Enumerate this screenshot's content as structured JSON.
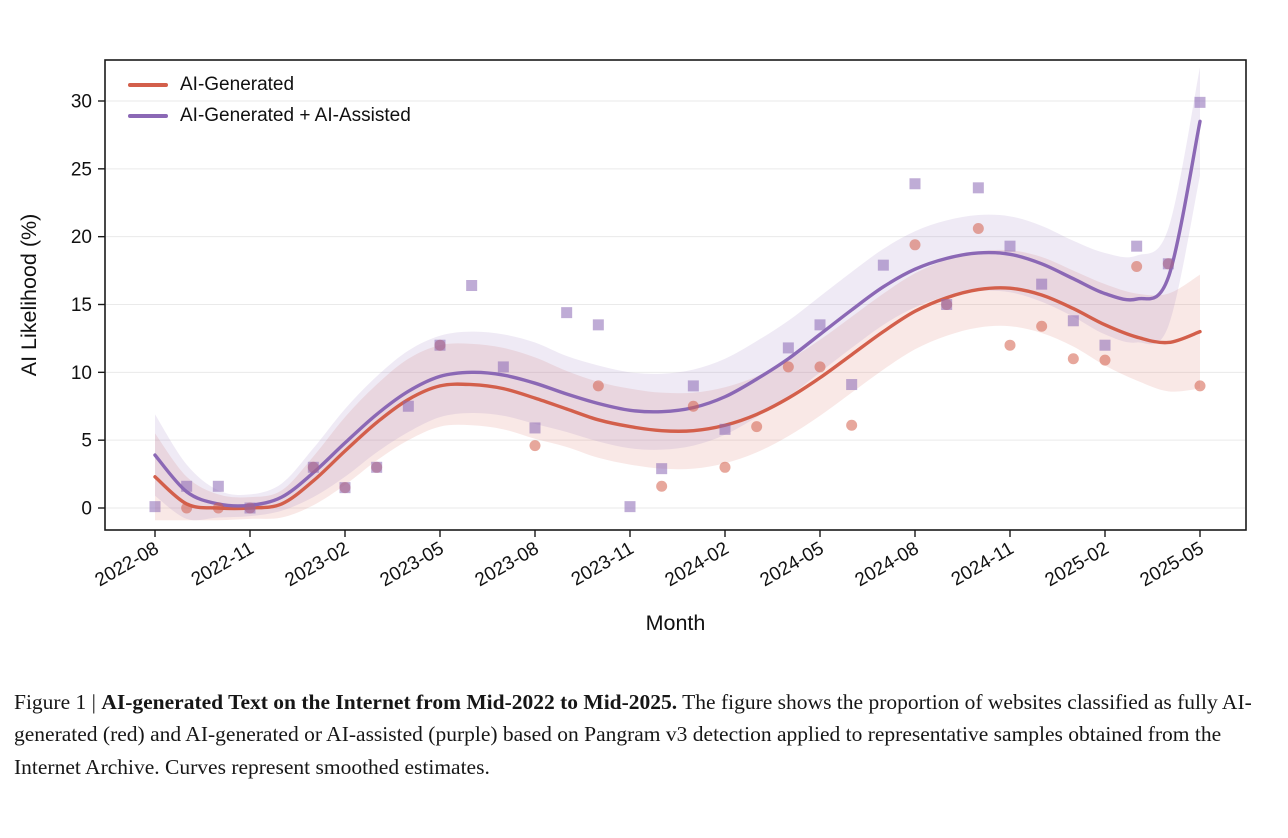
{
  "figure": {
    "caption_prefix": "Figure 1 | ",
    "caption_title": "AI-generated Text on the Internet from Mid-2022 to Mid-2025.",
    "caption_body": " The figure shows the proportion of websites classified as fully AI-generated (red) and AI-generated or AI-assisted (purple) based on Pangram v3 detection applied to representative samples obtained from the Internet Archive. Curves represent smoothed estimates."
  },
  "chart_data": {
    "type": "scatter",
    "subtype": "scatter points with smoothed trend lines and confidence bands",
    "title": "",
    "xlabel": "Month",
    "ylabel": "AI Likelihood (%)",
    "ylim": [
      -1.6,
      33
    ],
    "grid": "horizontal",
    "y_ticks": [
      0,
      5,
      10,
      15,
      20,
      25,
      30
    ],
    "x_tick_labels": [
      "2022-08",
      "2022-11",
      "2023-02",
      "2023-05",
      "2023-08",
      "2023-11",
      "2024-02",
      "2024-05",
      "2024-08",
      "2024-11",
      "2025-02",
      "2025-05"
    ],
    "x_months": [
      "2022-08",
      "2022-09",
      "2022-10",
      "2022-11",
      "2022-12",
      "2023-01",
      "2023-02",
      "2023-03",
      "2023-04",
      "2023-05",
      "2023-06",
      "2023-07",
      "2023-08",
      "2023-09",
      "2023-10",
      "2023-11",
      "2023-12",
      "2024-01",
      "2024-02",
      "2024-03",
      "2024-04",
      "2024-05",
      "2024-06",
      "2024-07",
      "2024-08",
      "2024-09",
      "2024-10",
      "2024-11",
      "2024-12",
      "2025-01",
      "2025-02",
      "2025-03",
      "2025-04",
      "2025-05"
    ],
    "legend": {
      "position": "top-left",
      "entries": [
        {
          "label": "AI-Generated",
          "color": "#d35f4b"
        },
        {
          "label": "AI-Generated + AI-Assisted",
          "color": "#8b68b5"
        }
      ]
    },
    "colors": {
      "grid": "#eaeaea",
      "axis": "#1a1a1a",
      "red_band_fill": "rgba(211,95,75,0.14)",
      "purple_band_fill": "rgba(139,104,181,0.14)"
    },
    "series": [
      {
        "name": "AI-Generated",
        "color": "#d35f4b",
        "marker": "circle",
        "smoothed": [
          2.3,
          0.3,
          0.0,
          0.0,
          0.3,
          2.0,
          4.2,
          6.3,
          8.0,
          9.0,
          9.1,
          8.8,
          8.1,
          7.3,
          6.5,
          6.0,
          5.7,
          5.7,
          6.1,
          6.9,
          8.1,
          9.6,
          11.3,
          13.0,
          14.5,
          15.5,
          16.1,
          16.2,
          15.7,
          14.7,
          13.5,
          12.6,
          12.2,
          13.0
        ],
        "band_width": [
          3.2,
          2.0,
          1.0,
          0.8,
          1.0,
          1.8,
          2.5,
          2.8,
          3.0,
          3.0,
          3.0,
          3.0,
          3.0,
          2.8,
          2.8,
          2.8,
          2.8,
          2.8,
          2.8,
          2.8,
          2.8,
          2.8,
          2.8,
          2.8,
          2.8,
          2.8,
          2.8,
          2.8,
          2.8,
          2.8,
          3.0,
          3.2,
          3.6,
          4.2
        ],
        "points": [
          [
            "2022-09",
            0.0
          ],
          [
            "2022-10",
            0.0
          ],
          [
            "2022-11",
            0.0
          ],
          [
            "2023-01",
            3.0
          ],
          [
            "2023-02",
            1.5
          ],
          [
            "2023-03",
            3.0
          ],
          [
            "2023-05",
            12.0
          ],
          [
            "2023-08",
            4.6
          ],
          [
            "2023-10",
            9.0
          ],
          [
            "2023-12",
            1.6
          ],
          [
            "2024-01",
            7.5
          ],
          [
            "2024-02",
            3.0
          ],
          [
            "2024-03",
            6.0
          ],
          [
            "2024-04",
            10.4
          ],
          [
            "2024-05",
            10.4
          ],
          [
            "2024-06",
            6.1
          ],
          [
            "2024-08",
            19.4
          ],
          [
            "2024-09",
            15.0
          ],
          [
            "2024-10",
            20.6
          ],
          [
            "2024-11",
            12.0
          ],
          [
            "2024-12",
            13.4
          ],
          [
            "2025-01",
            11.0
          ],
          [
            "2025-02",
            10.9
          ],
          [
            "2025-03",
            17.8
          ],
          [
            "2025-04",
            18.0
          ],
          [
            "2025-05",
            9.0
          ]
        ]
      },
      {
        "name": "AI-Generated + AI-Assisted",
        "color": "#8b68b5",
        "marker": "square",
        "smoothed": [
          3.9,
          1.2,
          0.3,
          0.2,
          0.8,
          2.6,
          4.8,
          6.9,
          8.6,
          9.7,
          10.0,
          9.8,
          9.2,
          8.4,
          7.7,
          7.2,
          7.1,
          7.4,
          8.2,
          9.5,
          11.0,
          12.8,
          14.6,
          16.3,
          17.6,
          18.4,
          18.8,
          18.7,
          18.0,
          16.9,
          15.8,
          15.4,
          17.0,
          28.5
        ],
        "band_width": [
          3.0,
          2.0,
          1.0,
          0.8,
          1.0,
          1.8,
          2.5,
          2.8,
          3.0,
          3.0,
          3.0,
          3.0,
          3.0,
          2.8,
          2.8,
          2.8,
          2.8,
          2.8,
          2.8,
          2.8,
          2.8,
          2.8,
          2.8,
          2.8,
          2.8,
          2.8,
          2.8,
          2.8,
          2.8,
          2.8,
          3.0,
          3.2,
          3.6,
          4.0
        ],
        "points": [
          [
            "2022-08",
            0.1
          ],
          [
            "2022-09",
            1.6
          ],
          [
            "2022-10",
            1.6
          ],
          [
            "2022-11",
            0.0
          ],
          [
            "2023-01",
            3.0
          ],
          [
            "2023-02",
            1.5
          ],
          [
            "2023-03",
            3.0
          ],
          [
            "2023-04",
            7.5
          ],
          [
            "2023-05",
            12.0
          ],
          [
            "2023-06",
            16.4
          ],
          [
            "2023-07",
            10.4
          ],
          [
            "2023-08",
            5.9
          ],
          [
            "2023-09",
            14.4
          ],
          [
            "2023-10",
            13.5
          ],
          [
            "2023-11",
            0.1
          ],
          [
            "2023-12",
            2.9
          ],
          [
            "2024-01",
            9.0
          ],
          [
            "2024-02",
            5.8
          ],
          [
            "2024-04",
            11.8
          ],
          [
            "2024-05",
            13.5
          ],
          [
            "2024-06",
            9.1
          ],
          [
            "2024-07",
            17.9
          ],
          [
            "2024-08",
            23.9
          ],
          [
            "2024-09",
            15.0
          ],
          [
            "2024-10",
            23.6
          ],
          [
            "2024-11",
            19.3
          ],
          [
            "2024-12",
            16.5
          ],
          [
            "2025-01",
            13.8
          ],
          [
            "2025-02",
            12.0
          ],
          [
            "2025-03",
            19.3
          ],
          [
            "2025-04",
            18.0
          ],
          [
            "2025-05",
            29.9
          ]
        ]
      }
    ]
  }
}
